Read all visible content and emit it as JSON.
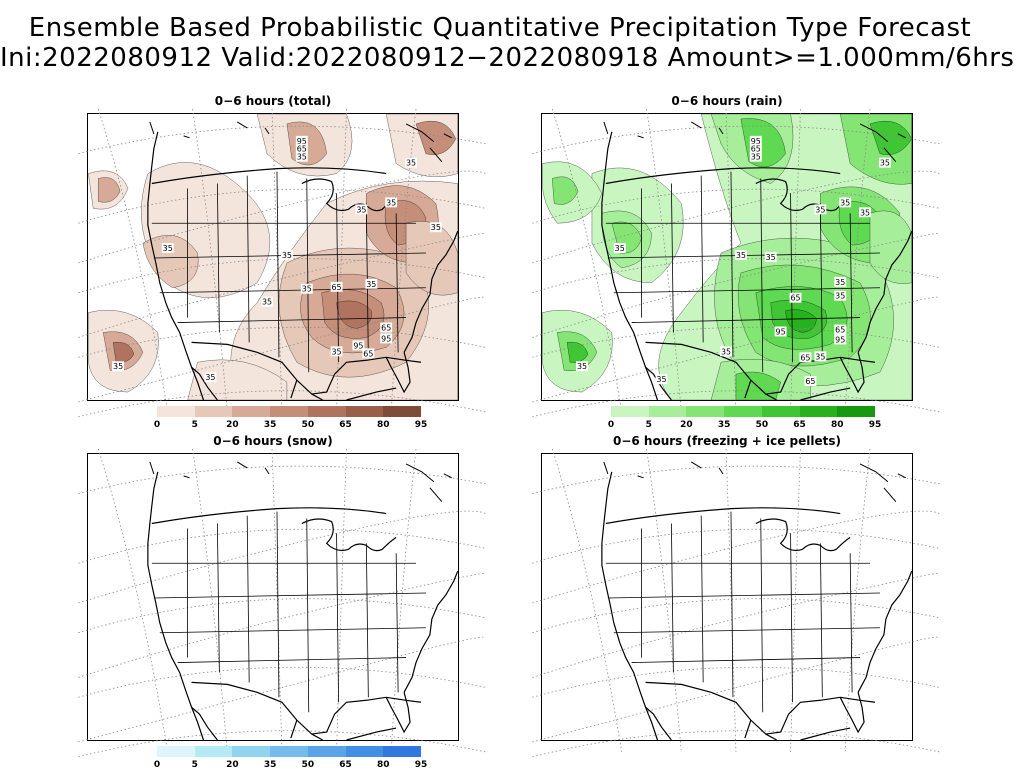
{
  "header": {
    "title_line1": "Ensemble Based Probabilistic Quantitative Precipitation Type Forecast",
    "title_line2": "Ini:2022080912 Valid:2022080912−2022080918 Amount>=1.000mm/6hrs"
  },
  "panels": [
    {
      "id": "total",
      "title": "0−6 hours (total)"
    },
    {
      "id": "rain",
      "title": "0−6 hours (rain)"
    },
    {
      "id": "snow",
      "title": "0−6 hours (snow)"
    },
    {
      "id": "frz",
      "title": "0−6 hours (freezing + ice pellets)"
    }
  ],
  "legend_levels": [
    "0",
    "5",
    "20",
    "35",
    "50",
    "65",
    "80",
    "95"
  ],
  "legend_colors": {
    "total": [
      "#f3e4dc",
      "#e6c8b8",
      "#d6aa96",
      "#c48e78",
      "#b0735f",
      "#986049",
      "#7e4c39"
    ],
    "rain": [
      "#c8f5c0",
      "#a6ee9a",
      "#84e474",
      "#5fd852",
      "#40c634",
      "#26b21c",
      "#16990e"
    ],
    "snow": [
      "#dcf6fb",
      "#b4eaf4",
      "#92d4ef",
      "#74bceb",
      "#5aa5e8",
      "#438fe4",
      "#2e78df"
    ]
  },
  "contour_labels": {
    "total": [
      "95",
      "65",
      "35",
      "35",
      "35",
      "35",
      "35",
      "35",
      "35",
      "65",
      "35",
      "35",
      "65",
      "95",
      "95",
      "65",
      "35",
      "35",
      "35",
      "35"
    ],
    "rain": [
      "95",
      "65",
      "35",
      "35",
      "35",
      "35",
      "35",
      "35",
      "35",
      "35",
      "65",
      "35",
      "95",
      "65",
      "95",
      "35",
      "65",
      "35",
      "35",
      "35",
      "65",
      "35"
    ]
  }
}
